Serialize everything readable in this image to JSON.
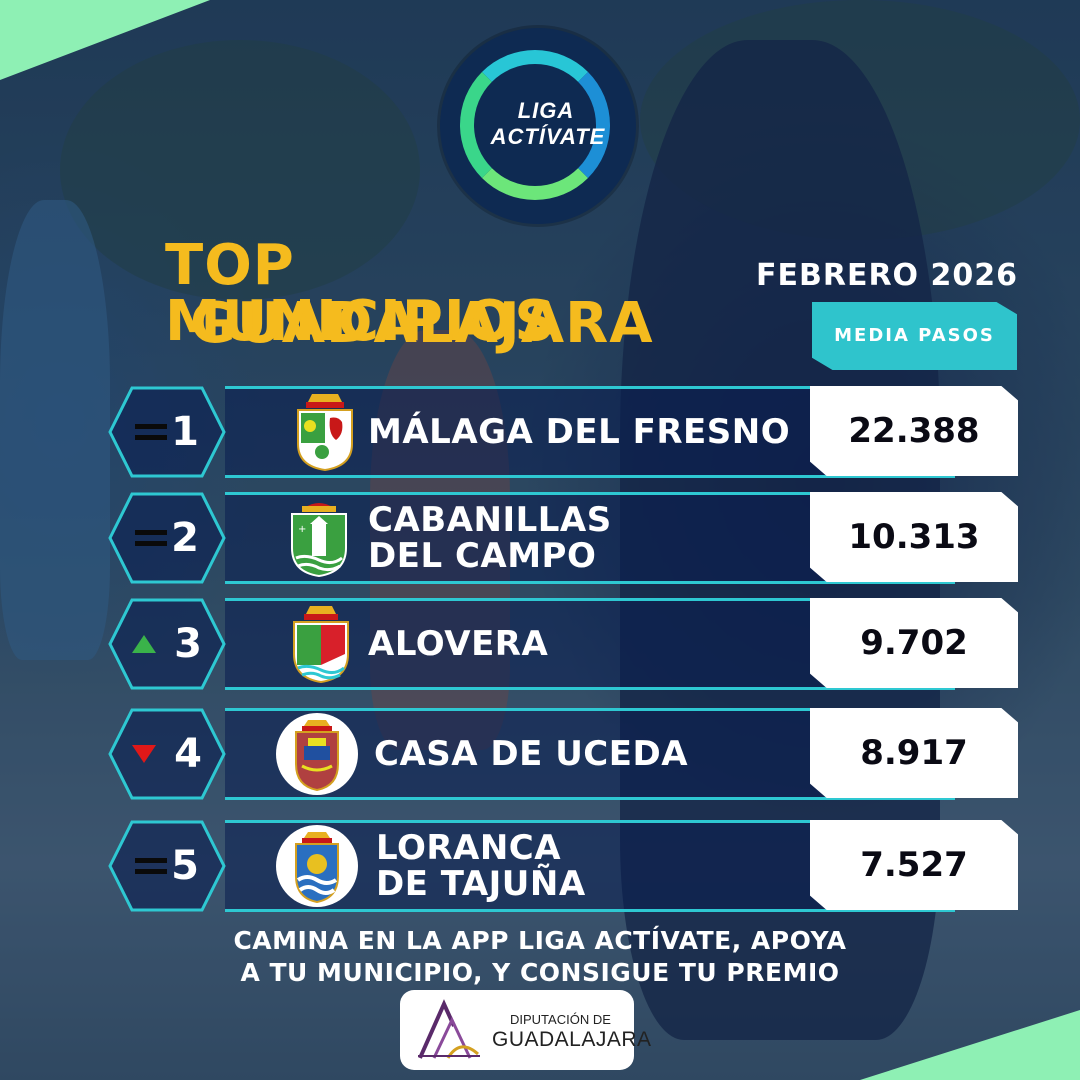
{
  "logo": {
    "line1": "LIGA",
    "line2": "ACTÍVATE"
  },
  "title": {
    "line1": "TOP MUNICIPIOS",
    "line2": "GUADALAJARA"
  },
  "month": "FEBRERO 2026",
  "metric_label": "MEDIA PASOS",
  "colors": {
    "accent": "#2ec8d2",
    "title": "#f5bb1e",
    "up": "#3ab34a",
    "down": "#e01818"
  },
  "ranking": [
    {
      "rank": "1",
      "trend": "equal",
      "trend_icon": "equals-icon",
      "name1": "MÁLAGA DEL FRESNO",
      "name2": "",
      "value": "22.388"
    },
    {
      "rank": "2",
      "trend": "equal",
      "trend_icon": "equals-icon",
      "name1": "CABANILLAS",
      "name2": "DEL CAMPO",
      "value": "10.313"
    },
    {
      "rank": "3",
      "trend": "up",
      "trend_icon": "arrow-up-icon",
      "name1": "ALOVERA",
      "name2": "",
      "value": "9.702"
    },
    {
      "rank": "4",
      "trend": "down",
      "trend_icon": "arrow-down-icon",
      "name1": "CASA DE UCEDA",
      "name2": "",
      "value": "8.917"
    },
    {
      "rank": "5",
      "trend": "equal",
      "trend_icon": "equals-icon",
      "name1": "LORANCA",
      "name2": "DE TAJUÑA",
      "value": "7.527"
    }
  ],
  "cta": {
    "line1": "CAMINA EN LA APP LIGA ACTÍVATE, APOYA",
    "line2": "A TU MUNICIPIO, Y CONSIGUE TU PREMIO"
  },
  "sponsor": {
    "line1": "DIPUTACIÓN DE",
    "line2": "GUADALAJARA"
  }
}
